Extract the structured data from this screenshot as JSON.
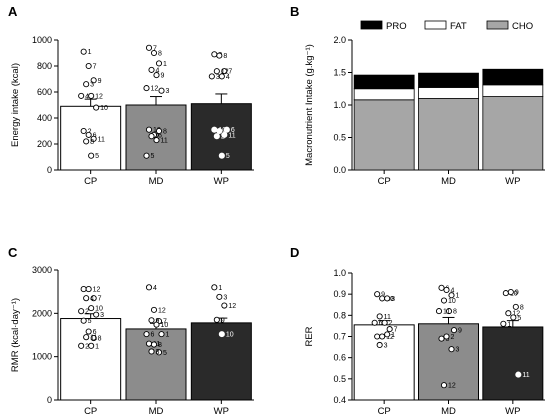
{
  "chart_data": [
    {
      "panel": "A",
      "type": "bar",
      "ylabel": "Energy intake (kcal)",
      "ylim": [
        0,
        1000
      ],
      "yticks": [
        "0",
        "200",
        "400",
        "600",
        "800",
        "1000"
      ],
      "categories": [
        "CP",
        "MD",
        "WP"
      ],
      "bar_colors": [
        "#ffffff",
        "#8c8c8c",
        "#2a2a2a"
      ],
      "values": [
        490,
        500,
        510
      ],
      "sem": [
        55,
        65,
        75
      ],
      "points": [
        [
          {
            "id": "1",
            "y": 910
          },
          {
            "id": "7",
            "y": 800
          },
          {
            "id": "9",
            "y": 690
          },
          {
            "id": "3",
            "y": 660
          },
          {
            "id": "12",
            "y": 570
          },
          {
            "id": "4",
            "y": 570
          },
          {
            "id": "10",
            "y": 480
          },
          {
            "id": "2",
            "y": 300
          },
          {
            "id": "6",
            "y": 270
          },
          {
            "id": "11",
            "y": 240
          },
          {
            "id": "8",
            "y": 220
          },
          {
            "id": "5",
            "y": 110
          }
        ],
        [
          {
            "id": "7",
            "y": 940
          },
          {
            "id": "8",
            "y": 900
          },
          {
            "id": "1",
            "y": 820
          },
          {
            "id": "4",
            "y": 770
          },
          {
            "id": "9",
            "y": 730
          },
          {
            "id": "12",
            "y": 630
          },
          {
            "id": "3",
            "y": 610
          },
          {
            "id": "10",
            "y": 310
          },
          {
            "id": "6",
            "y": 270
          },
          {
            "id": "8",
            "y": 300
          },
          {
            "id": "2",
            "y": 260
          },
          {
            "id": "11",
            "y": 230
          },
          {
            "id": "5",
            "y": 110
          }
        ],
        [
          {
            "id": "9",
            "y": 890
          },
          {
            "id": "8",
            "y": 880
          },
          {
            "id": "7",
            "y": 760
          },
          {
            "id": "12",
            "y": 760
          },
          {
            "id": "4",
            "y": 720
          },
          {
            "id": "3",
            "y": 720
          },
          {
            "id": "6",
            "y": 310
          },
          {
            "id": "10",
            "y": 310
          },
          {
            "id": "1",
            "y": 300
          },
          {
            "id": "11",
            "y": 270
          },
          {
            "id": "2",
            "y": 260
          },
          {
            "id": "5",
            "y": 110
          }
        ]
      ]
    },
    {
      "panel": "B",
      "type": "bar",
      "stacked": true,
      "ylabel": "Macronutrient Intake (g.kg⁻¹)",
      "ylim": [
        0,
        2.0
      ],
      "yticks": [
        "0.0",
        "0.5",
        "1.0",
        "1.5",
        "2.0"
      ],
      "categories": [
        "CP",
        "MD",
        "WP"
      ],
      "legend": [
        "PRO",
        "FAT",
        "CHO"
      ],
      "legend_position": "top",
      "series": [
        {
          "name": "CHO",
          "color": "#a6a6a6",
          "values": [
            1.08,
            1.1,
            1.13
          ]
        },
        {
          "name": "FAT",
          "color": "#ffffff",
          "values": [
            0.17,
            0.17,
            0.18
          ]
        },
        {
          "name": "PRO",
          "color": "#000000",
          "values": [
            0.21,
            0.22,
            0.24
          ]
        }
      ]
    },
    {
      "panel": "C",
      "type": "bar",
      "ylabel": "RMR (kcal·day⁻¹)",
      "ylim": [
        0,
        3000
      ],
      "yticks": [
        "0",
        "1000",
        "2000",
        "3000"
      ],
      "categories": [
        "CP",
        "MD",
        "WP"
      ],
      "bar_colors": [
        "#ffffff",
        "#8c8c8c",
        "#2a2a2a"
      ],
      "values": [
        1880,
        1640,
        1780
      ],
      "sem": [
        110,
        130,
        110
      ],
      "points": [
        [
          {
            "id": "9",
            "y": 2560
          },
          {
            "id": "12",
            "y": 2560
          },
          {
            "id": "7",
            "y": 2350
          },
          {
            "id": "4",
            "y": 2350
          },
          {
            "id": "10",
            "y": 2120
          },
          {
            "id": "2",
            "y": 2050
          },
          {
            "id": "3",
            "y": 1970
          },
          {
            "id": "5",
            "y": 1830
          },
          {
            "id": "6",
            "y": 1580
          },
          {
            "id": "8",
            "y": 1430
          },
          {
            "id": "11",
            "y": 1450
          },
          {
            "id": "1",
            "y": 1250
          },
          {
            "id": "2",
            "y": 1250
          }
        ],
        [
          {
            "id": "4",
            "y": 2600
          },
          {
            "id": "12",
            "y": 2080
          },
          {
            "id": "7",
            "y": 1820
          },
          {
            "id": "9",
            "y": 1840
          },
          {
            "id": "10",
            "y": 1740
          },
          {
            "id": "6",
            "y": 1520
          },
          {
            "id": "1",
            "y": 1520
          },
          {
            "id": "11",
            "y": 1300
          },
          {
            "id": "8",
            "y": 1280
          },
          {
            "id": "5",
            "y": 1100
          },
          {
            "id": "3",
            "y": 1120
          }
        ],
        [
          {
            "id": "1",
            "y": 2600
          },
          {
            "id": "3",
            "y": 2380
          },
          {
            "id": "12",
            "y": 2180
          },
          {
            "id": "9",
            "y": 1850
          },
          {
            "id": "10",
            "y": 1520
          }
        ]
      ]
    },
    {
      "panel": "D",
      "type": "bar",
      "ylabel": "RER",
      "ylim": [
        0.4,
        1.0
      ],
      "yticks": [
        "0.4",
        "0.5",
        "0.6",
        "0.7",
        "0.8",
        "0.9",
        "1.0"
      ],
      "categories": [
        "CP",
        "MD",
        "WP"
      ],
      "bar_colors": [
        "#ffffff",
        "#8c8c8c",
        "#2a2a2a"
      ],
      "values": [
        0.755,
        0.76,
        0.745
      ],
      "sem": [
        0.02,
        0.03,
        0.03
      ],
      "points": [
        [
          {
            "id": "9",
            "y": 0.9
          },
          {
            "id": "10",
            "y": 0.88
          },
          {
            "id": "8",
            "y": 0.88
          },
          {
            "id": "11",
            "y": 0.795
          },
          {
            "id": "2",
            "y": 0.765
          },
          {
            "id": "6",
            "y": 0.765
          },
          {
            "id": "7",
            "y": 0.735
          },
          {
            "id": "4",
            "y": 0.7
          },
          {
            "id": "12",
            "y": 0.7
          },
          {
            "id": "1",
            "y": 0.71
          },
          {
            "id": "3",
            "y": 0.66
          }
        ],
        [
          {
            "id": "6",
            "y": 0.93
          },
          {
            "id": "4",
            "y": 0.92
          },
          {
            "id": "1",
            "y": 0.895
          },
          {
            "id": "10",
            "y": 0.87
          },
          {
            "id": "8",
            "y": 0.82
          },
          {
            "id": "11",
            "y": 0.82
          },
          {
            "id": "9",
            "y": 0.73
          },
          {
            "id": "5",
            "y": 0.69
          },
          {
            "id": "2",
            "y": 0.7
          },
          {
            "id": "3",
            "y": 0.64
          },
          {
            "id": "12",
            "y": 0.47
          }
        ],
        [
          {
            "id": "10",
            "y": 0.905
          },
          {
            "id": "9",
            "y": 0.91
          },
          {
            "id": "8",
            "y": 0.84
          },
          {
            "id": "12",
            "y": 0.81
          },
          {
            "id": "5",
            "y": 0.79
          },
          {
            "id": "1",
            "y": 0.76
          },
          {
            "id": "11",
            "y": 0.52
          }
        ]
      ]
    }
  ]
}
